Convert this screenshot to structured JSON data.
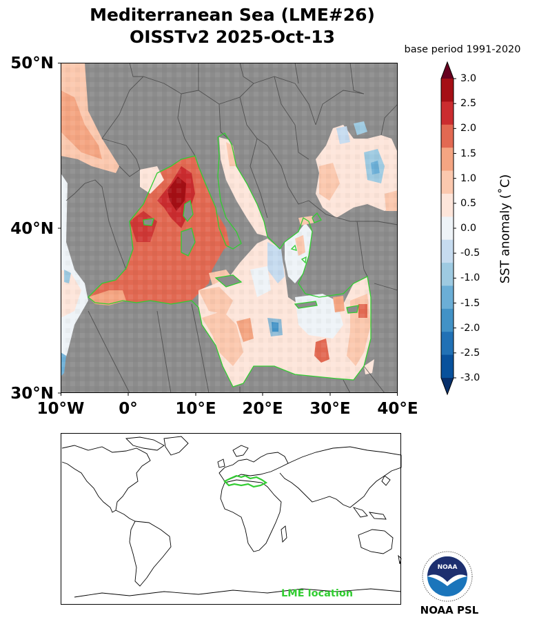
{
  "title": {
    "line1": "Mediterranean Sea (LME#26)",
    "line2": "OISSTv2 2025-Oct-13"
  },
  "base_period": "base period 1991-2020",
  "map": {
    "lat_labels": [
      "50°N",
      "40°N",
      "30°N"
    ],
    "lon_labels": [
      "10°W",
      "0°",
      "10°E",
      "20°E",
      "30°E",
      "40°E"
    ],
    "extent": {
      "lon_min": -10,
      "lon_max": 40,
      "lat_min": 30,
      "lat_max": 50
    },
    "land_color": "#8c8c8c",
    "outline_color": "#32cd32"
  },
  "colorbar": {
    "label": "SST anomaly ( $^\\circ$C)",
    "label_display": "SST anomaly (˚C)",
    "ticks": [
      "3.0",
      "2.5",
      "2.0",
      "1.5",
      "1.0",
      "0.5",
      "0.0",
      "-0.5",
      "-1.0",
      "-1.5",
      "-2.0",
      "-2.5",
      "-3.0"
    ],
    "colors_top_to_bottom": [
      "#a50f15",
      "#cb2c2f",
      "#e26952",
      "#f4a582",
      "#fbc8ae",
      "#fde5da",
      "#eef3f7",
      "#c6dbef",
      "#9ecae1",
      "#6baed6",
      "#4292c6",
      "#2171b5",
      "#08519c"
    ],
    "over_color": "#67001f",
    "under_color": "#08306b"
  },
  "locator": {
    "label": "LME location"
  },
  "logo": {
    "text": "NOAA",
    "caption": "NOAA PSL"
  }
}
